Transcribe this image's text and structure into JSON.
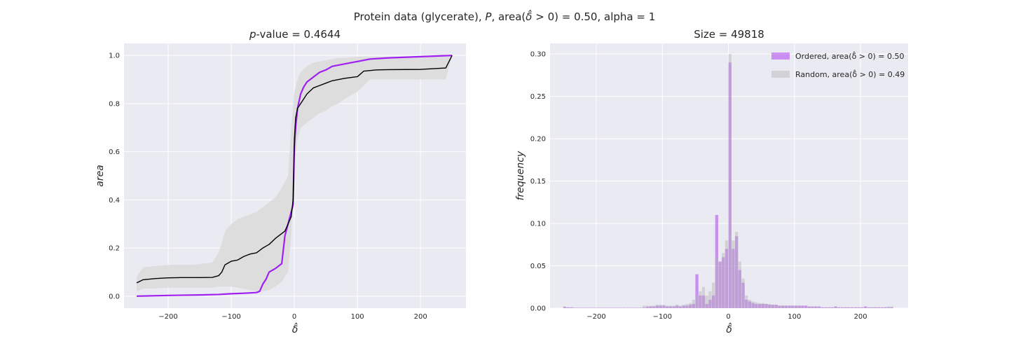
{
  "figure": {
    "suptitle": "Protein data (glycerate), P, area(δ̂ > 0) = 0.50, alpha = 1"
  },
  "chart_data": [
    {
      "type": "line",
      "title": "p-value = 0.4644",
      "xlabel": "δ̂",
      "ylabel": "area",
      "xlim": [
        -270,
        272
      ],
      "ylim": [
        -0.05,
        1.05
      ],
      "xticks": [
        -200,
        -100,
        0,
        100,
        200
      ],
      "yticks": [
        0.0,
        0.2,
        0.4,
        0.6,
        0.8,
        1.0
      ],
      "xtick_labels": [
        "−200",
        "−100",
        "0",
        "100",
        "200"
      ],
      "ytick_labels": [
        "0.0",
        "0.2",
        "0.4",
        "0.6",
        "0.8",
        "1.0"
      ],
      "grid": true,
      "series": [
        {
          "color": "#a020f0",
          "x": [
            -250,
            -200,
            -150,
            -120,
            -100,
            -80,
            -60,
            -55,
            -50,
            -45,
            -40,
            -30,
            -20,
            -15,
            -10,
            -5,
            -2,
            0,
            2,
            5,
            10,
            15,
            20,
            30,
            40,
            50,
            60,
            70,
            80,
            100,
            120,
            150,
            200,
            250
          ],
          "y": [
            0.0,
            0.003,
            0.005,
            0.007,
            0.01,
            0.012,
            0.015,
            0.02,
            0.05,
            0.07,
            0.1,
            0.115,
            0.135,
            0.25,
            0.3,
            0.35,
            0.38,
            0.62,
            0.7,
            0.78,
            0.84,
            0.87,
            0.89,
            0.91,
            0.93,
            0.94,
            0.955,
            0.96,
            0.965,
            0.975,
            0.985,
            0.99,
            0.995,
            1.0
          ]
        },
        {
          "color": "#000000",
          "x": [
            -250,
            -240,
            -220,
            -200,
            -180,
            -150,
            -130,
            -120,
            -115,
            -110,
            -100,
            -90,
            -80,
            -75,
            -70,
            -60,
            -55,
            -50,
            -40,
            -30,
            -20,
            -15,
            -10,
            -5,
            -2,
            0,
            2,
            5,
            10,
            15,
            20,
            30,
            40,
            50,
            60,
            70,
            80,
            100,
            110,
            130,
            150,
            200,
            240,
            250
          ],
          "y": [
            0.055,
            0.068,
            0.073,
            0.076,
            0.077,
            0.077,
            0.078,
            0.085,
            0.1,
            0.13,
            0.145,
            0.15,
            0.165,
            0.17,
            0.175,
            0.18,
            0.19,
            0.2,
            0.215,
            0.24,
            0.26,
            0.27,
            0.3,
            0.33,
            0.4,
            0.65,
            0.74,
            0.78,
            0.8,
            0.82,
            0.84,
            0.865,
            0.875,
            0.885,
            0.895,
            0.9,
            0.905,
            0.912,
            0.935,
            0.94,
            0.941,
            0.942,
            0.948,
            1.0
          ]
        }
      ],
      "band": {
        "color": "#dcdcdc",
        "x": [
          -250,
          -240,
          -200,
          -160,
          -130,
          -120,
          -115,
          -110,
          -100,
          -90,
          -80,
          -70,
          -60,
          -50,
          -40,
          -30,
          -20,
          -10,
          -5,
          0,
          5,
          10,
          20,
          30,
          40,
          50,
          60,
          70,
          80,
          100,
          120,
          150,
          200,
          240,
          250
        ],
        "lower": [
          0.02,
          0.03,
          0.035,
          0.035,
          0.035,
          0.04,
          0.04,
          0.04,
          0.04,
          0.035,
          0.03,
          0.025,
          0.02,
          0.02,
          0.025,
          0.04,
          0.06,
          0.1,
          0.25,
          0.55,
          0.65,
          0.7,
          0.72,
          0.74,
          0.76,
          0.77,
          0.79,
          0.8,
          0.82,
          0.85,
          0.9,
          0.9,
          0.9,
          0.9,
          1.0
        ],
        "upper": [
          0.08,
          0.12,
          0.13,
          0.13,
          0.14,
          0.18,
          0.22,
          0.27,
          0.3,
          0.32,
          0.33,
          0.34,
          0.35,
          0.37,
          0.39,
          0.41,
          0.45,
          0.5,
          0.7,
          0.85,
          0.9,
          0.93,
          0.955,
          0.97,
          0.975,
          0.98,
          0.985,
          0.99,
          0.99,
          0.995,
          0.995,
          0.995,
          0.995,
          0.995,
          1.0
        ]
      }
    },
    {
      "type": "bar",
      "title": "Size = 49818",
      "xlabel": "δ̂",
      "ylabel": "frequency",
      "xlim": [
        -270,
        272
      ],
      "ylim": [
        0.0,
        0.3125
      ],
      "xticks": [
        -200,
        -100,
        0,
        100,
        200
      ],
      "yticks": [
        0.0,
        0.05,
        0.1,
        0.15,
        0.2,
        0.25,
        0.3
      ],
      "xtick_labels": [
        "−200",
        "−100",
        "0",
        "100",
        "200"
      ],
      "ytick_labels": [
        "0.00",
        "0.05",
        "0.10",
        "0.15",
        "0.20",
        "0.25",
        "0.30"
      ],
      "grid": true,
      "legend": "top-right",
      "bin_width": 5,
      "series": [
        {
          "name": "Ordered, area(δ̂ > 0) = 0.50",
          "color": "#a020f0",
          "bins": [
            -250,
            -245,
            -240,
            -235,
            -230,
            -225,
            -220,
            -215,
            -210,
            -205,
            -200,
            -195,
            -190,
            -185,
            -180,
            -175,
            -170,
            -165,
            -160,
            -155,
            -150,
            -145,
            -140,
            -135,
            -130,
            -125,
            -120,
            -115,
            -110,
            -105,
            -100,
            -95,
            -90,
            -85,
            -80,
            -75,
            -70,
            -65,
            -60,
            -55,
            -50,
            -45,
            -40,
            -35,
            -30,
            -25,
            -20,
            -15,
            -10,
            -5,
            0,
            5,
            10,
            15,
            20,
            25,
            30,
            35,
            40,
            45,
            50,
            55,
            60,
            65,
            70,
            75,
            80,
            85,
            90,
            95,
            100,
            105,
            110,
            115,
            120,
            125,
            130,
            135,
            140,
            145,
            150,
            155,
            160,
            165,
            170,
            175,
            180,
            185,
            190,
            195,
            200,
            205,
            210,
            215,
            220,
            225,
            230,
            235,
            240,
            245
          ],
          "values": [
            0.0015,
            0.001,
            0.001,
            0.0005,
            0.0005,
            0.0005,
            0.0005,
            0.0005,
            0.0005,
            0.0005,
            0.0005,
            0.0005,
            0.0005,
            0.0005,
            0.0005,
            0.0005,
            0.0005,
            0.0005,
            0.0005,
            0.0005,
            0.0005,
            0.0005,
            0.0005,
            0.0005,
            0.0005,
            0.0015,
            0.002,
            0.002,
            0.003,
            0.003,
            0.003,
            0.002,
            0.002,
            0.002,
            0.003,
            0.002,
            0.003,
            0.003,
            0.004,
            0.005,
            0.04,
            0.015,
            0.015,
            0.005,
            0.01,
            0.015,
            0.11,
            0.055,
            0.06,
            0.07,
            0.29,
            0.07,
            0.085,
            0.045,
            0.03,
            0.01,
            0.008,
            0.006,
            0.005,
            0.005,
            0.005,
            0.005,
            0.004,
            0.004,
            0.004,
            0.003,
            0.003,
            0.003,
            0.003,
            0.003,
            0.003,
            0.003,
            0.003,
            0.003,
            0.002,
            0.002,
            0.002,
            0.002,
            0.001,
            0.001,
            0.001,
            0.001,
            0.002,
            0.001,
            0.001,
            0.001,
            0.001,
            0.001,
            0.001,
            0.001,
            0.001,
            0.002,
            0.001,
            0.001,
            0.001,
            0.001,
            0.001,
            0.001,
            0.001,
            0.001
          ]
        },
        {
          "name": "Random, area(δ̂ > 0) = 0.49",
          "color": "#b4b4b4",
          "bins": [
            -250,
            -245,
            -240,
            -235,
            -230,
            -225,
            -220,
            -215,
            -210,
            -205,
            -200,
            -195,
            -190,
            -185,
            -180,
            -175,
            -170,
            -165,
            -160,
            -155,
            -150,
            -145,
            -140,
            -135,
            -130,
            -125,
            -120,
            -115,
            -110,
            -105,
            -100,
            -95,
            -90,
            -85,
            -80,
            -75,
            -70,
            -65,
            -60,
            -55,
            -50,
            -45,
            -40,
            -35,
            -30,
            -25,
            -20,
            -15,
            -10,
            -5,
            0,
            5,
            10,
            15,
            20,
            25,
            30,
            35,
            40,
            45,
            50,
            55,
            60,
            65,
            70,
            75,
            80,
            85,
            90,
            95,
            100,
            105,
            110,
            115,
            120,
            125,
            130,
            135,
            140,
            145,
            150,
            155,
            160,
            165,
            170,
            175,
            180,
            185,
            190,
            195,
            200,
            205,
            210,
            215,
            220,
            225,
            230,
            235,
            240,
            245
          ],
          "values": [
            0.002,
            0.001,
            0.001,
            0.0005,
            0.0005,
            0.0005,
            0.0005,
            0.0005,
            0.0005,
            0.0005,
            0.0005,
            0.0005,
            0.0005,
            0.0005,
            0.0005,
            0.0005,
            0.0005,
            0.0005,
            0.0005,
            0.0005,
            0.0005,
            0.0005,
            0.0005,
            0.0005,
            0.003,
            0.003,
            0.003,
            0.003,
            0.004,
            0.004,
            0.004,
            0.003,
            0.003,
            0.003,
            0.004,
            0.003,
            0.004,
            0.005,
            0.006,
            0.01,
            0.015,
            0.02,
            0.025,
            0.015,
            0.02,
            0.03,
            0.06,
            0.055,
            0.065,
            0.08,
            0.3,
            0.08,
            0.09,
            0.055,
            0.035,
            0.015,
            0.01,
            0.008,
            0.007,
            0.006,
            0.006,
            0.005,
            0.005,
            0.004,
            0.004,
            0.003,
            0.003,
            0.003,
            0.003,
            0.003,
            0.003,
            0.003,
            0.002,
            0.002,
            0.002,
            0.002,
            0.002,
            0.002,
            0.001,
            0.001,
            0.001,
            0.001,
            0.002,
            0.001,
            0.001,
            0.001,
            0.001,
            0.001,
            0.001,
            0.001,
            0.001,
            0.001,
            0.001,
            0.001,
            0.001,
            0.001,
            0.001,
            0.001,
            0.002,
            0.002
          ]
        }
      ]
    }
  ]
}
